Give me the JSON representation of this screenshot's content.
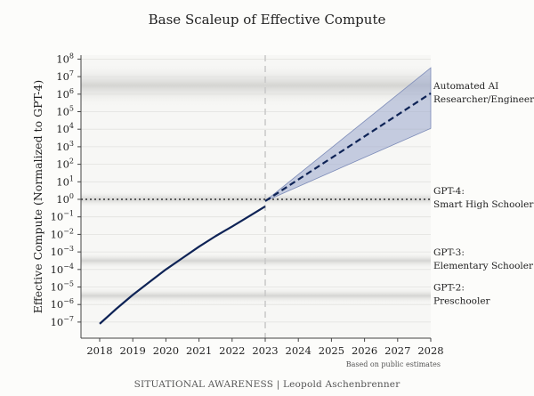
{
  "chart_data": {
    "type": "line",
    "title": "Base Scaleup of Effective Compute",
    "ylabel": "Effective Compute (Normalized to GPT-4)",
    "xlabel": "",
    "x_ticks": [
      "2018",
      "2019",
      "2020",
      "2021",
      "2022",
      "2023",
      "2024",
      "2025",
      "2026",
      "2027",
      "2028"
    ],
    "y_ticks": [
      {
        "base": "10",
        "exp": "8"
      },
      {
        "base": "10",
        "exp": "7"
      },
      {
        "base": "10",
        "exp": "6"
      },
      {
        "base": "10",
        "exp": "5"
      },
      {
        "base": "10",
        "exp": "4"
      },
      {
        "base": "10",
        "exp": "3"
      },
      {
        "base": "10",
        "exp": "2"
      },
      {
        "base": "10",
        "exp": "1"
      },
      {
        "base": "10",
        "exp": "0"
      },
      {
        "base": "10",
        "exp": "−1"
      },
      {
        "base": "10",
        "exp": "−2"
      },
      {
        "base": "10",
        "exp": "−3"
      },
      {
        "base": "10",
        "exp": "−4"
      },
      {
        "base": "10",
        "exp": "−5"
      },
      {
        "base": "10",
        "exp": "−6"
      },
      {
        "base": "10",
        "exp": "−7"
      }
    ],
    "y_scale": "log",
    "xlim": [
      2017.5,
      2028
    ],
    "ylim_exp": [
      -7.5,
      8.2
    ],
    "grid": true,
    "historical": {
      "x": [
        2018,
        2018.5,
        2019,
        2019.5,
        2020,
        2020.5,
        2021,
        2021.5,
        2022,
        2022.5,
        2023
      ],
      "log10_y": [
        -7.1,
        -6.25,
        -5.45,
        -4.72,
        -4.0,
        -3.35,
        -2.7,
        -2.1,
        -1.55,
        -0.98,
        -0.4
      ]
    },
    "projection": {
      "x": [
        2023,
        2028
      ],
      "log10_y_median": [
        -0.1,
        6.05
      ],
      "log10_y_upper": [
        -0.1,
        7.5
      ],
      "log10_y_lower": [
        -0.1,
        4.05
      ]
    },
    "gpt4_level_log10": 0,
    "annotations": [
      {
        "lines": [
          "Automated AI",
          "Researcher/Engineer?"
        ],
        "log10_y": 6
      },
      {
        "lines": [
          "GPT-4:",
          "Smart High Schooler"
        ],
        "log10_y": 0
      },
      {
        "lines": [
          "GPT-3:",
          "Elementary Schooler"
        ],
        "log10_y": -3.5
      },
      {
        "lines": [
          "GPT-2:",
          "Preschooler"
        ],
        "log10_y": -5.5
      }
    ],
    "bands_log10": [
      [
        5.2,
        7.8
      ],
      [
        -0.5,
        0.5
      ],
      [
        -4.0,
        -3.0
      ],
      [
        -6.0,
        -5.0
      ]
    ],
    "colors": {
      "line": "#0e2356",
      "band": "#9aa8cc",
      "dotted": "#333333",
      "vline": "#c8c8c8"
    }
  },
  "note": "Based on public estimates",
  "footer": "SITUATIONAL AWARENESS | Leopold Aschenbrenner"
}
